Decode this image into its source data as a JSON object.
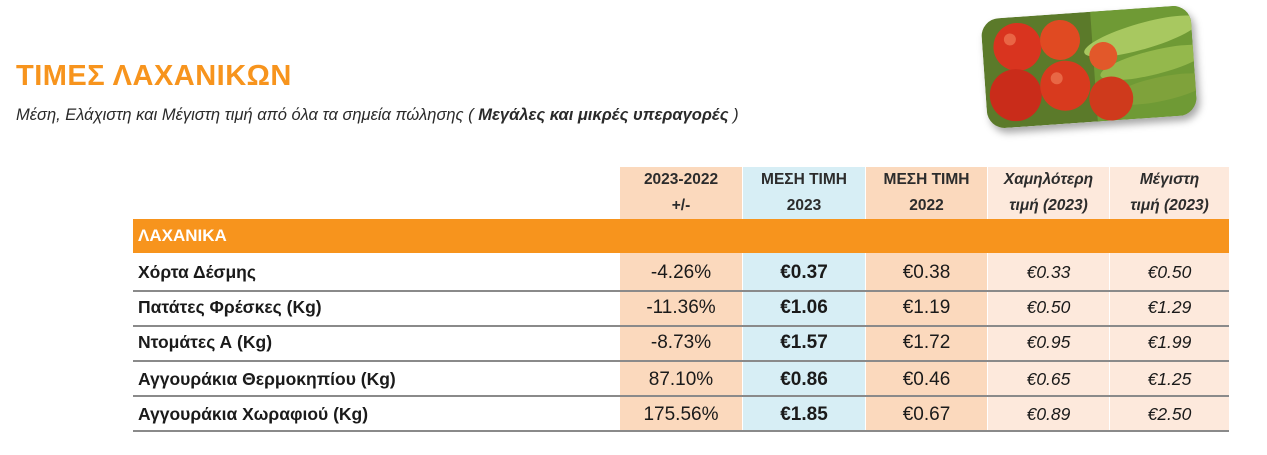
{
  "title": "ΤΙΜΕΣ ΛΑΧΑΝΙΚΩΝ",
  "subtitle_prefix": "Μέση, Ελάχιστη και Μέγιστη τιμή από όλα τα σημεία πώλησης (",
  "subtitle_bold": "Μεγάλες και μικρές υπεραγορές",
  "subtitle_suffix": ")",
  "colors": {
    "accent": "#f7941d",
    "col_change": "#fbd9bd",
    "col_avg2023": "#d7eef5",
    "col_avg2022": "#fbd9bd",
    "col_minmax": "#fde9dc"
  },
  "headers": {
    "change": [
      "2023-2022",
      "+/-"
    ],
    "avg2023": [
      "ΜΕΣΗ ΤΙΜΗ",
      "2023"
    ],
    "avg2022": [
      "ΜΕΣΗ ΤΙΜΗ",
      "2022"
    ],
    "min2023": [
      "Χαμηλότερη",
      "τιμή (2023)"
    ],
    "max2023": [
      "Μέγιστη",
      "τιμή (2023)"
    ]
  },
  "category": "ΛΑΧΑΝΙΚΑ",
  "rows": [
    {
      "name": "Χόρτα Δέσμης",
      "change": "-4.26%",
      "avg2023": "€0.37",
      "avg2022": "€0.38",
      "min2023": "€0.33",
      "max2023": "€0.50"
    },
    {
      "name": "Πατάτες Φρέσκες (Kg)",
      "change": "-11.36%",
      "avg2023": "€1.06",
      "avg2022": "€1.19",
      "min2023": "€0.50",
      "max2023": "€1.29"
    },
    {
      "name": "Ντομάτες Α (Kg)",
      "change": "-8.73%",
      "avg2023": "€1.57",
      "avg2022": "€1.72",
      "min2023": "€0.95",
      "max2023": "€1.99"
    },
    {
      "name": "Αγγουράκια Θερμοκηπίου (Kg)",
      "change": "87.10%",
      "avg2023": "€0.86",
      "avg2022": "€0.46",
      "min2023": "€0.65",
      "max2023": "€1.25"
    },
    {
      "name": "Αγγουράκια Χωραφιού (Kg)",
      "change": "175.56%",
      "avg2023": "€1.85",
      "avg2022": "€0.67",
      "min2023": "€0.89",
      "max2023": "€2.50"
    }
  ]
}
